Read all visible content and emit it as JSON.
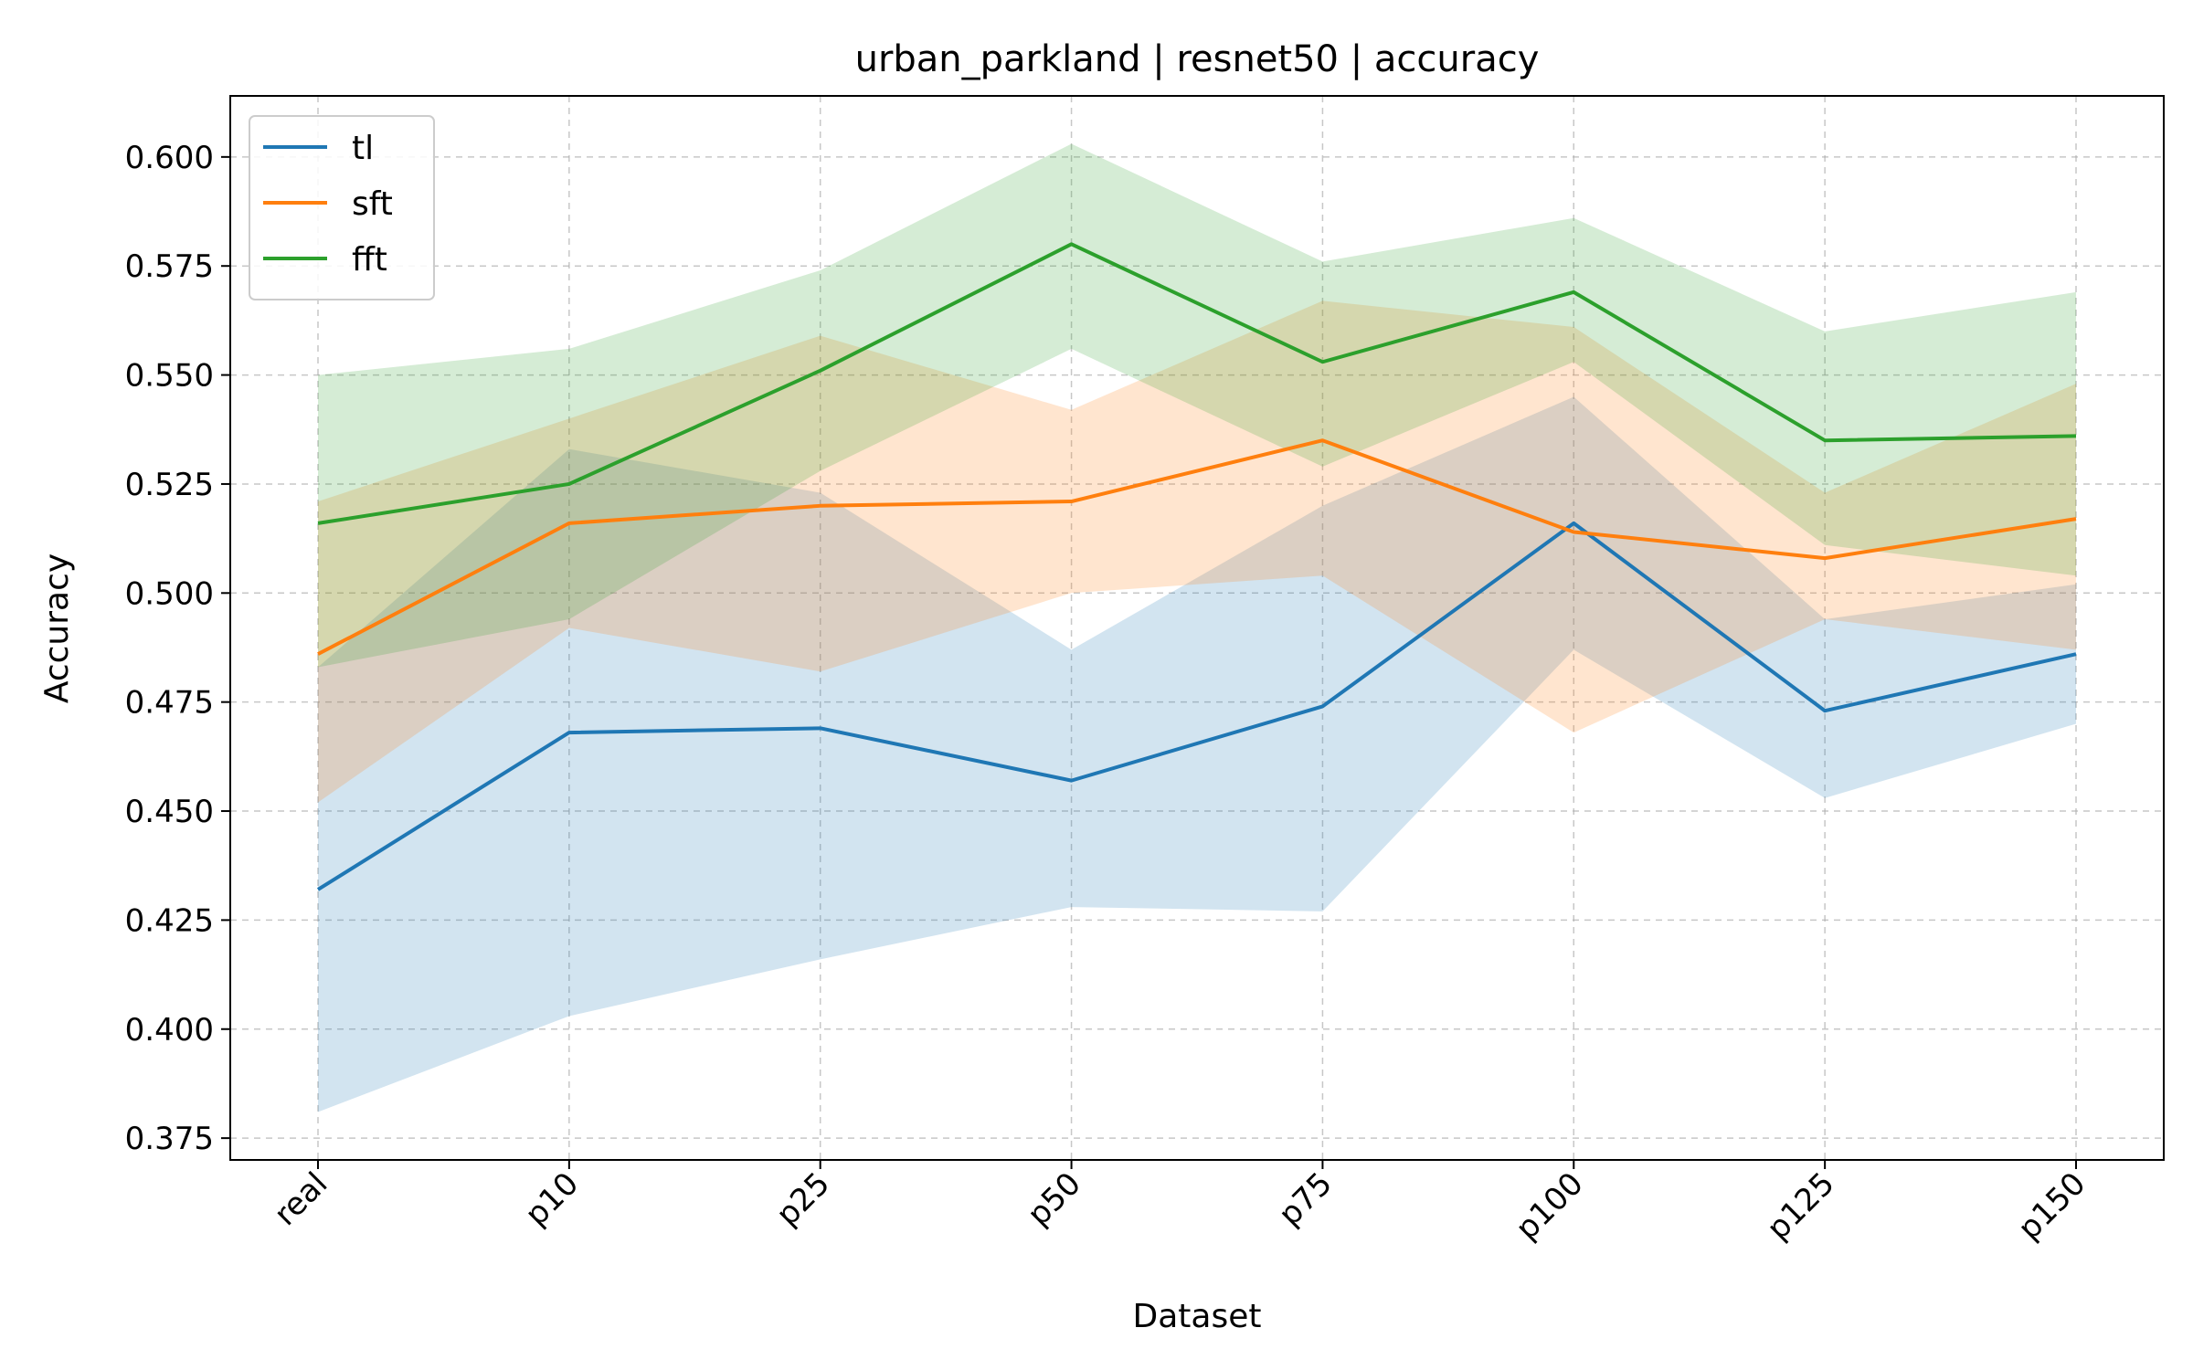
{
  "chart_data": {
    "type": "line",
    "title": "urban_parkland | resnet50 | accuracy",
    "xlabel": "Dataset",
    "ylabel": "Accuracy",
    "categories": [
      "real",
      "p10",
      "p25",
      "p50",
      "p75",
      "p100",
      "p125",
      "p150"
    ],
    "ylim": [
      0.37,
      0.614
    ],
    "yticks": [
      0.375,
      0.4,
      0.425,
      0.45,
      0.475,
      0.5,
      0.525,
      0.55,
      0.575,
      0.6
    ],
    "grid": true,
    "legend_position": "top-left",
    "series": [
      {
        "name": "tl",
        "color": "#1f77b4",
        "values": [
          0.432,
          0.468,
          0.469,
          0.457,
          0.474,
          0.516,
          0.473,
          0.486
        ],
        "lower": [
          0.381,
          0.403,
          0.416,
          0.428,
          0.427,
          0.487,
          0.453,
          0.47
        ],
        "upper": [
          0.483,
          0.533,
          0.523,
          0.487,
          0.52,
          0.545,
          0.494,
          0.502
        ]
      },
      {
        "name": "sft",
        "color": "#ff7f0e",
        "values": [
          0.486,
          0.516,
          0.52,
          0.521,
          0.535,
          0.514,
          0.508,
          0.517
        ],
        "lower": [
          0.452,
          0.492,
          0.482,
          0.5,
          0.504,
          0.468,
          0.494,
          0.487
        ],
        "upper": [
          0.521,
          0.54,
          0.559,
          0.542,
          0.567,
          0.561,
          0.523,
          0.548
        ]
      },
      {
        "name": "fft",
        "color": "#2ca02c",
        "values": [
          0.516,
          0.525,
          0.551,
          0.58,
          0.553,
          0.569,
          0.535,
          0.536
        ],
        "lower": [
          0.483,
          0.494,
          0.528,
          0.556,
          0.529,
          0.553,
          0.511,
          0.504
        ],
        "upper": [
          0.55,
          0.556,
          0.574,
          0.603,
          0.576,
          0.586,
          0.56,
          0.569
        ]
      }
    ]
  }
}
